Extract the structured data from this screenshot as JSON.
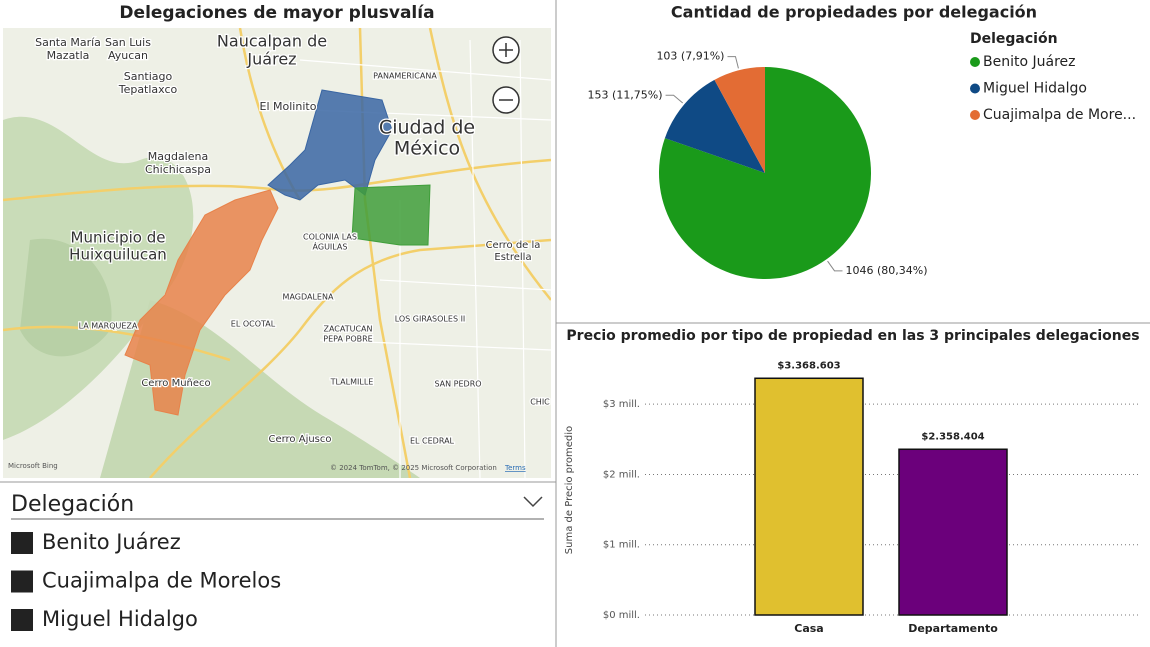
{
  "map": {
    "title": "Delegaciones de mayor plusvalía",
    "labels": [
      [
        "Santa María",
        "Mazatla"
      ],
      [
        "San Luis",
        "Ayucan"
      ],
      [
        "Naucalpan de",
        "Juárez"
      ],
      [
        "Santiago",
        "Tepatlaxco"
      ],
      [
        "PANAMERICANA"
      ],
      [
        "El Molinito"
      ],
      [
        "Ciudad de",
        "México"
      ],
      [
        "Magdalena",
        "Chichicaspa"
      ],
      [
        "Municipio de",
        "Huixquilucan"
      ],
      [
        "COLONIA LAS",
        "ÁGUILAS"
      ],
      [
        "Cerro de la",
        "Estrella"
      ],
      [
        "MAGDALENA"
      ],
      [
        "EL OCOTAL"
      ],
      [
        "LA MARQUEZA"
      ],
      [
        "LOS GIRASOLES II"
      ],
      [
        "ZACATUCAN",
        "PEPA POBRE"
      ],
      [
        "Cerro Muñeco"
      ],
      [
        "TLALMILLE"
      ],
      [
        "SAN PEDRO"
      ],
      [
        "CHIC"
      ],
      [
        "Cerro Ajusco"
      ],
      [
        "EL CEDRAL"
      ]
    ],
    "area_colors": [
      "#3a66a3",
      "#3f9e3a",
      "#e8824a"
    ],
    "logo": "Microsoft Bing",
    "attribution": "© 2024 TomTom, © 2025 Microsoft Corporation",
    "terms": "Terms"
  },
  "slicer": {
    "title": "Delegación",
    "items": [
      "Benito Juárez",
      "Cuajimalpa de Morelos",
      "Miguel Hidalgo"
    ]
  },
  "chart_data": [
    {
      "type": "pie",
      "title": "Cantidad de propiedades por delegación",
      "legend_title": "Delegación",
      "legend": "top-right",
      "categories": [
        "Benito Juárez",
        "Miguel Hidalgo",
        "Cuajimalpa de More..."
      ],
      "values": [
        1046,
        153,
        103
      ],
      "value_labels": [
        "1046 (80,34%)",
        "153 (11,75%)",
        "103 (7,91%)"
      ],
      "colors": [
        "#1a9a1a",
        "#0f4a85",
        "#e36c34"
      ]
    },
    {
      "type": "bar",
      "title": "Precio promedio por tipo de propiedad en las 3 principales delegaciones",
      "y_label": "Suma de Precio promedio",
      "categories": [
        "Casa",
        "Departamento"
      ],
      "values": [
        3368603,
        2358404
      ],
      "value_labels": [
        "$3.368.603",
        "$2.358.404"
      ],
      "colors": [
        "#e0c02f",
        "#6b007b"
      ],
      "ylim": [
        0,
        3600000
      ],
      "yticks": [
        {
          "value": 0,
          "label": "$0 mill."
        },
        {
          "value": 1000000,
          "label": "$1 mill."
        },
        {
          "value": 2000000,
          "label": "$2 mill."
        },
        {
          "value": 3000000,
          "label": "$3 mill."
        }
      ],
      "grid": true
    }
  ]
}
